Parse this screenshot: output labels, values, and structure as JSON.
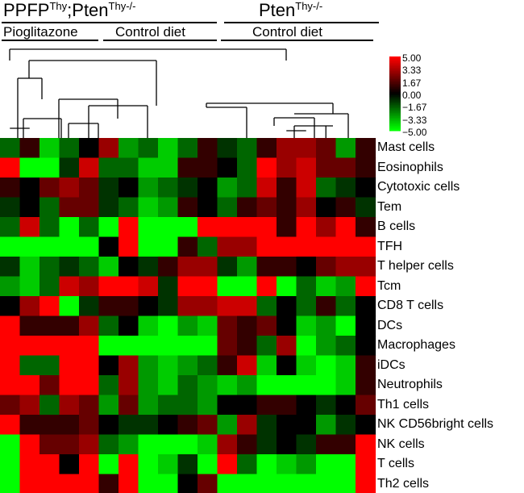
{
  "groups": [
    {
      "prefix": "PPFP",
      "prefix_sup": "Thy",
      "sep": ";",
      "main": "Pten",
      "main_sup": "Thy-/-"
    },
    {
      "main": "Pten",
      "main_sup": "Thy-/-"
    }
  ],
  "subgroups": [
    "Pioglitazone",
    "Control diet",
    "Control diet"
  ],
  "colors": {
    "high": "#ff0000",
    "mid": "#000000",
    "low": "#00ff00"
  },
  "chart_data": {
    "type": "heatmap",
    "rows": [
      "Mast cells",
      "Eosinophils",
      "Cytotoxic cells",
      "Tem",
      "B cells",
      "TFH",
      "T helper cells",
      "Tcm",
      "CD8 T cells",
      "DCs",
      "Macrophages",
      "iDCs",
      "Neutrophils",
      "Th1 cells",
      "NK CD56bright cells",
      "NK cells",
      "T cells",
      "Th2 cells"
    ],
    "n_columns": 19,
    "scale_range": [
      -5,
      5
    ],
    "legend_ticks": [
      "5.00",
      "3.33",
      "1.67",
      "0.00",
      "−1.67",
      "−3.33",
      "−5.00"
    ],
    "values": [
      [
        -2,
        1,
        -4,
        -2,
        0,
        3,
        -3,
        -2,
        -4,
        -2,
        1,
        -1,
        -2,
        1,
        3,
        3,
        2,
        -3,
        1
      ],
      [
        5,
        -5,
        -5,
        -1,
        4,
        -2,
        -2,
        -4,
        -4,
        1,
        1,
        0,
        -2,
        5,
        3,
        4,
        2,
        2,
        1
      ],
      [
        1,
        0,
        2,
        3,
        2,
        -1,
        0,
        -3,
        -2,
        -1,
        0,
        -3,
        -2,
        4,
        1,
        4,
        -2,
        -1,
        0
      ],
      [
        -1,
        0,
        -2,
        2,
        2,
        -1,
        -2,
        -4,
        -3,
        1,
        0,
        -2,
        1,
        2,
        1,
        3,
        0,
        1,
        -1
      ],
      [
        -2,
        4,
        -2,
        -5,
        -2,
        -5,
        5,
        -5,
        -5,
        -5,
        5,
        5,
        5,
        5,
        1,
        5,
        3,
        5,
        1
      ],
      [
        -5,
        -5,
        -5,
        -5,
        -5,
        0,
        5,
        -5,
        -5,
        1,
        -2,
        3,
        3,
        5,
        5,
        5,
        5,
        5,
        5
      ],
      [
        -1,
        -4,
        -2,
        -1,
        -2,
        -4,
        0,
        -1,
        1,
        3,
        3,
        -1,
        -3,
        1,
        1,
        0,
        2,
        3,
        3
      ],
      [
        -3,
        -4,
        -2,
        4,
        3,
        5,
        5,
        4,
        -1,
        5,
        5,
        -5,
        -5,
        5,
        -5,
        -2,
        -4,
        -3,
        5
      ],
      [
        0,
        3,
        5,
        -5,
        -1,
        1,
        1,
        0,
        -1,
        3,
        3,
        4,
        4,
        -2,
        0,
        -2,
        1,
        -2,
        0
      ],
      [
        5,
        1,
        1,
        1,
        3,
        -2,
        0,
        -4,
        -5,
        -3,
        -4,
        2,
        1,
        2,
        0,
        -4,
        -3,
        -5,
        0
      ],
      [
        5,
        5,
        5,
        5,
        5,
        -5,
        -5,
        -5,
        -5,
        -5,
        -5,
        2,
        1,
        -2,
        3,
        -5,
        -3,
        -2,
        0
      ],
      [
        5,
        -2,
        -2,
        5,
        5,
        0,
        3,
        -3,
        -4,
        -3,
        -2,
        1,
        4,
        -4,
        0,
        -4,
        -5,
        -4,
        1
      ],
      [
        5,
        5,
        2,
        5,
        5,
        -2,
        3,
        -3,
        -4,
        -2,
        -3,
        -4,
        -3,
        -5,
        -5,
        -5,
        -5,
        -4,
        1
      ],
      [
        2,
        3,
        -2,
        3,
        2,
        -3,
        2,
        -3,
        -2,
        -2,
        -3,
        0,
        0,
        1,
        1,
        0,
        -1,
        0,
        2
      ],
      [
        5,
        1,
        1,
        1,
        2,
        0,
        -1,
        -1,
        0,
        1,
        2,
        -3,
        3,
        -1,
        0,
        0,
        -3,
        -1,
        0
      ],
      [
        -5,
        5,
        2,
        2,
        3,
        -2,
        -3,
        -5,
        -5,
        -5,
        -4,
        3,
        1,
        -1,
        0,
        -1,
        1,
        1,
        5
      ],
      [
        -5,
        5,
        5,
        0,
        5,
        -5,
        5,
        -5,
        -4,
        -1,
        -5,
        5,
        -2,
        -5,
        -4,
        -3,
        -5,
        -5,
        5
      ],
      [
        -5,
        5,
        5,
        5,
        5,
        1,
        5,
        -5,
        -5,
        0,
        2,
        -5,
        -5,
        -5,
        -5,
        -5,
        -5,
        -5,
        5
      ]
    ]
  }
}
